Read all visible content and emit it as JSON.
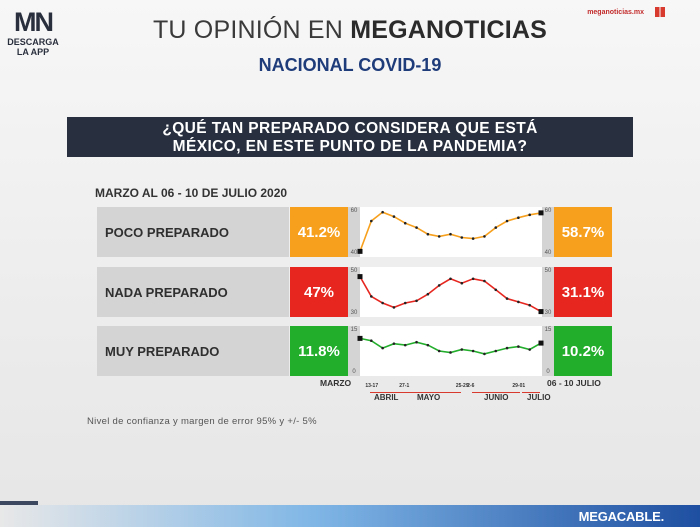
{
  "header": {
    "logo_mark": "MN",
    "logo_sub": "DESCARGA LA APP",
    "site": "meganoticias.mx",
    "title_light": "TU OPINIÓN EN ",
    "title_bold": "MEGANOTICIAS",
    "subtitle": "NACIONAL COVID-19"
  },
  "question": {
    "line1": "¿QUÉ TAN PREPARADO CONSIDERA QUE ESTÁ",
    "line2": "MÉXICO, EN ESTE PUNTO DE LA PANDEMIA?"
  },
  "period": "MARZO AL 06 - 10 DE JULIO 2020",
  "note": "Nivel de confianza y margen de error 95% y +/- 5%",
  "footer": {
    "brand": "MEGACABLE."
  },
  "colors": {
    "poco": "#f7a01d",
    "nada": "#e6261f",
    "muy": "#22ad2b"
  },
  "chart_data": {
    "type": "line",
    "start_label": "MARZO",
    "end_label": "06 - 10 JULIO",
    "x": [
      "MARZO",
      "13-17",
      "",
      "",
      "27-1",
      "",
      "",
      "",
      "",
      "25-29",
      "2-6",
      "",
      "",
      "",
      "29-01",
      "",
      "06-10 JULIO"
    ],
    "x_tick_labels": [
      "13-17",
      "27-1",
      "25-29",
      "2-6",
      "29-01"
    ],
    "months": [
      "ABRIL",
      "MAYO",
      "JUNIO",
      "JULIO"
    ],
    "series": [
      {
        "name": "POCO PREPARADO",
        "start_value_label": "41.2%",
        "end_value_label": "58.7%",
        "scale": [
          40,
          60
        ],
        "values": [
          41.2,
          55,
          59,
          57,
          54,
          52,
          49,
          48,
          49,
          47.5,
          47,
          48,
          52,
          55,
          56.5,
          57.8,
          58.7
        ]
      },
      {
        "name": "NADA PREPARADO",
        "start_value_label": "47%",
        "end_value_label": "31.1%",
        "scale": [
          30,
          50
        ],
        "values": [
          47,
          38,
          35,
          33,
          35,
          36,
          39,
          43,
          46,
          44,
          46,
          45,
          41,
          37,
          35.5,
          34,
          31.1
        ]
      },
      {
        "name": "MUY PREPARADO",
        "start_value_label": "11.8%",
        "end_value_label": "10.2%",
        "scale": [
          0,
          15
        ],
        "values": [
          11.8,
          11,
          8.5,
          10,
          9.5,
          10.5,
          9.5,
          7.5,
          7,
          8,
          7.5,
          6.5,
          7.5,
          8.5,
          9,
          8,
          10.2
        ]
      }
    ]
  }
}
